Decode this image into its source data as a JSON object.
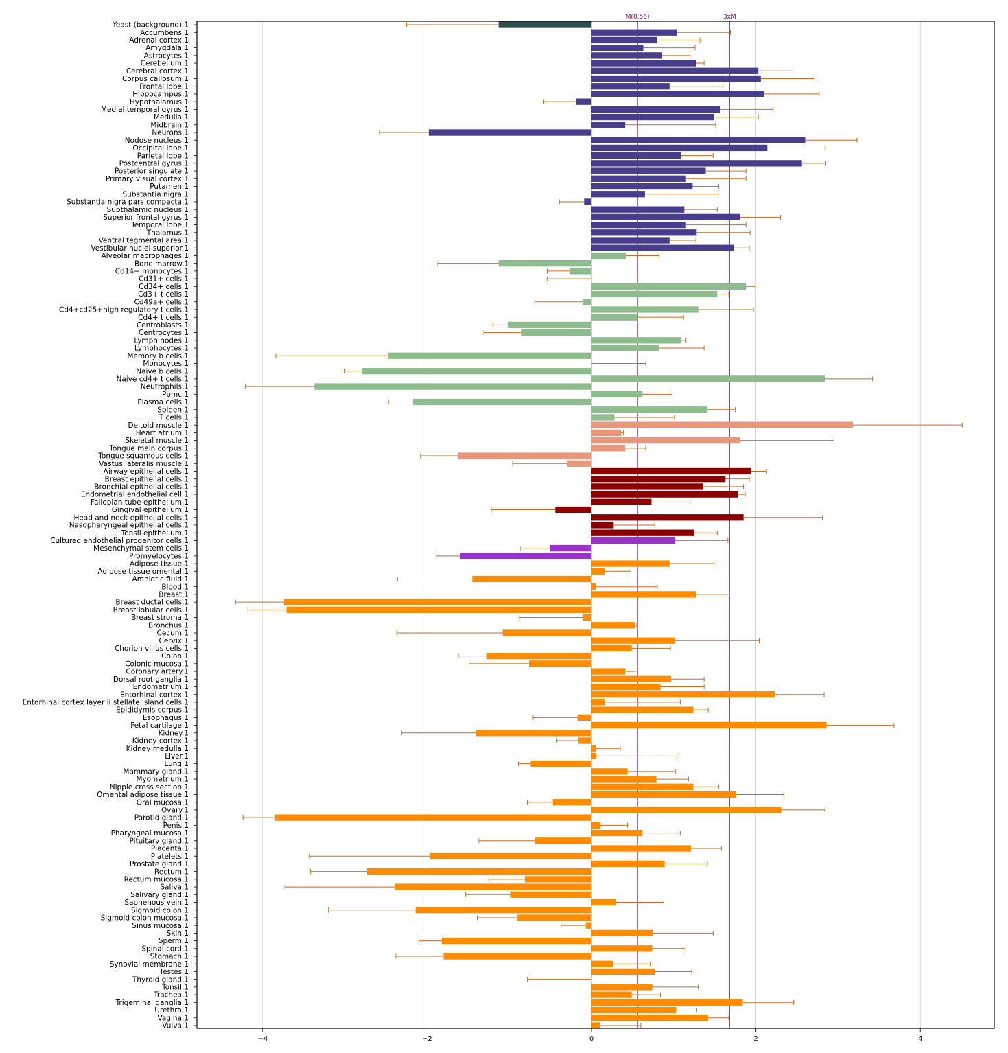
{
  "chart_data": {
    "type": "bar",
    "orientation": "horizontal",
    "xlim": [
      -4.8,
      4.9
    ],
    "xticks": [
      -4,
      -2,
      0,
      2,
      4
    ],
    "xtick_labels": [
      "−4",
      "−2",
      "0",
      "2",
      "4"
    ],
    "grid": "vertical",
    "error_color": "#d2691e",
    "reference_lines": [
      {
        "label": "M(0.56)",
        "x": 0.56,
        "color": "#800080"
      },
      {
        "label": "3xM",
        "x": 1.68,
        "color": "#800080"
      }
    ],
    "groups": [
      {
        "color": "#2f4f4f",
        "start": 0,
        "end": 0
      },
      {
        "color": "#483d8b",
        "start": 1,
        "end": 29
      },
      {
        "color": "#8fbc8f",
        "start": 30,
        "end": 51
      },
      {
        "color": "#e9967a",
        "start": 52,
        "end": 57
      },
      {
        "color": "#8b0000",
        "start": 58,
        "end": 66
      },
      {
        "color": "#9932cc",
        "start": 67,
        "end": 69
      },
      {
        "color": "#ff8c00",
        "start": 70,
        "end": 130
      }
    ],
    "categories": [
      "Yeast (background).1",
      "Accumbens.1",
      "Adrenal cortex.1",
      "Amygdala.1",
      "Astrocytes.1",
      "Cerebellum.1",
      "Cerebral cortex.1",
      "Corpus callosum.1",
      "Frontal lobe.1",
      "Hippocampus.1",
      "Hypothalamus.1",
      "Medial temporal gyrus.1",
      "Medulla.1",
      "Midbrain.1",
      "Neurons.1",
      "Nodose nucleus.1",
      "Occipital lobe.1",
      "Parietal lobe.1",
      "Postcentral gyrus.1",
      "Posterior singulate.1",
      "Primary visual cortex.1",
      "Putamen.1",
      "Substantia nigra.1",
      "Substantia nigra pars compacta.1",
      "Subthalamic nucleus.1",
      "Superior frontal gyrus.1",
      "Temporal lobe.1",
      "Thalamus.1",
      "Ventral tegmental area.1",
      "Vestibular nuclei superior.1",
      "Alveolar macrophages.1",
      "Bone marrow.1",
      "Cd14+ monocytes.1",
      "Cd31+ cells.1",
      "Cd34+ cells.1",
      "Cd3+ t cells.1",
      "Cd49a+ cells.1",
      "Cd4+cd25+high regulatory t cells.1",
      "Cd4+ t cells.1",
      "Centroblasts.1",
      "Centrocytes.1",
      "Lymph nodes.1",
      "Lymphocytes.1",
      "Memory b cells.1",
      "Monocytes.1",
      "Naive b cells.1",
      "Naive cd4+ t cells.1",
      "Neutrophils.1",
      "Pbmc.1",
      "Plasma cells.1",
      "Spleen.1",
      "T cells.1",
      "Deltoid muscle.1",
      "Heart atrium.1",
      "Skeletal muscle.1",
      "Tongue main corpus.1",
      "Tongue squamous cells.1",
      "Vastus lateralis muscle.1",
      "Airway epithelial cells.1",
      "Breast epithelial cells.1",
      "Bronchial epithelial cells.1",
      "Endometrial endothelial cell.1",
      "Fallopian tube epithelium.1",
      "Gingival epithelium.1",
      "Head and neck epithelial cells.1",
      "Nasopharyngeal epithelial cells.1",
      "Tonsil epithelium.1",
      "Cultured endothelial progenitor cells.1",
      "Mesenchymal stem cells.1",
      "Promyelocytes.1",
      "Adipose tissue.1",
      "Adipose tissue omental.1",
      "Amniotic fluid.1",
      "Blood.1",
      "Breast.1",
      "Breast ductal cells.1",
      "Breast lobular cells.1",
      "Breast stroma.1",
      "Bronchus.1",
      "Cecum.1",
      "Cervix.1",
      "Chorion villus cells.1",
      "Colon.1",
      "Colonic mucosa.1",
      "Coronary artery.1",
      "Dorsal root ganglia.1",
      "Endometrium.1",
      "Entorhinal cortex.1",
      "Entorhinal cortex layer ii stellate island cells.1",
      "Epididymis corpus.1",
      "Esophagus.1",
      "Fetal cartilage.1",
      "Kidney.1",
      "Kidney cortex.1",
      "Kidney medulla.1",
      "Liver.1",
      "Lung.1",
      "Mammary gland.1",
      "Myometrium.1",
      "Nipple cross section.1",
      "Omental adipose tissue.1",
      "Oral mucosa.1",
      "Ovary.1",
      "Parotid gland.1",
      "Penis.1",
      "Pharyngeal mucosa.1",
      "Pituitary gland.1",
      "Placenta.1",
      "Platelets.1",
      "Prostate gland.1",
      "Rectum.1",
      "Rectum mucosa.1",
      "Saliva.1",
      "Salivary gland.1",
      "Saphenous vein.1",
      "Sigmoid colon.1",
      "Sigmoid colon mucosa.1",
      "Sinus mucosa.1",
      "Skin.1",
      "Sperm.1",
      "Spinal cord.1",
      "Stomach.1",
      "Synovial membrane.1",
      "Testes.1",
      "Thyroid gland.1",
      "Tonsil.1",
      "Trachea.1",
      "Trigeminal ganglia.1",
      "Urethra.1",
      "Vagina.1",
      "Vulva.1"
    ],
    "values": [
      -1.13,
      1.04,
      0.8,
      0.63,
      0.86,
      1.27,
      2.03,
      2.06,
      0.95,
      2.1,
      -0.19,
      1.57,
      1.49,
      0.41,
      -1.98,
      2.6,
      2.14,
      1.09,
      2.56,
      1.39,
      1.15,
      1.23,
      0.65,
      -0.09,
      1.13,
      1.81,
      1.15,
      1.28,
      0.95,
      1.73,
      0.42,
      -1.13,
      -0.26,
      0.0,
      1.88,
      1.53,
      -0.11,
      1.3,
      0.56,
      -1.02,
      -0.85,
      1.09,
      0.82,
      -2.47,
      0.0,
      -2.79,
      2.84,
      -3.37,
      0.62,
      -2.17,
      1.41,
      0.28,
      3.18,
      0.36,
      1.81,
      0.41,
      -1.62,
      -0.3,
      1.94,
      1.63,
      1.36,
      1.78,
      0.73,
      -0.44,
      1.85,
      0.27,
      1.25,
      1.02,
      -0.51,
      -1.6,
      0.95,
      0.16,
      -1.45,
      0.05,
      1.27,
      -3.74,
      -3.71,
      -0.11,
      0.53,
      -1.08,
      1.02,
      0.49,
      -1.28,
      -0.76,
      0.41,
      0.97,
      0.84,
      2.23,
      0.16,
      1.24,
      -0.17,
      2.86,
      -1.41,
      -0.16,
      0.05,
      0.06,
      -0.74,
      0.44,
      0.79,
      1.24,
      1.76,
      -0.47,
      2.31,
      -3.85,
      0.11,
      0.62,
      -0.69,
      1.21,
      -1.97,
      0.89,
      -2.73,
      -0.81,
      -2.39,
      -0.99,
      0.3,
      -2.14,
      -0.9,
      -0.07,
      0.75,
      -1.82,
      0.74,
      -1.8,
      0.26,
      0.77,
      0.0,
      0.74,
      0.49,
      1.84,
      1.03,
      1.42,
      0.1
    ],
    "error_high": [
      -2.25,
      1.69,
      1.32,
      1.26,
      1.2,
      1.37,
      2.45,
      2.71,
      1.6,
      2.77,
      -0.58,
      2.21,
      2.03,
      1.51,
      -2.58,
      3.23,
      2.84,
      1.48,
      2.85,
      1.88,
      1.88,
      1.55,
      1.54,
      -0.39,
      1.53,
      2.3,
      1.88,
      1.93,
      1.27,
      1.92,
      0.82,
      -1.87,
      -0.54,
      -0.54,
      1.99,
      1.67,
      -0.69,
      1.97,
      1.12,
      -1.2,
      -1.31,
      1.15,
      1.37,
      -3.84,
      0.66,
      -3.0,
      3.42,
      -4.21,
      0.98,
      -2.47,
      1.75,
      1.01,
      4.51,
      0.39,
      2.95,
      0.66,
      -2.08,
      -0.96,
      2.13,
      1.92,
      1.85,
      1.87,
      1.2,
      -1.22,
      2.81,
      0.77,
      1.53,
      1.66,
      -0.86,
      -1.89,
      1.49,
      0.48,
      -2.36,
      0.8,
      1.68,
      -4.33,
      -4.18,
      -0.88,
      0.55,
      -2.37,
      2.04,
      0.96,
      -1.62,
      -1.49,
      0.53,
      1.37,
      1.37,
      2.83,
      1.08,
      1.42,
      -0.71,
      3.68,
      -2.31,
      -0.42,
      0.35,
      1.04,
      -0.89,
      1.02,
      1.18,
      1.55,
      2.34,
      -0.78,
      2.84,
      -4.24,
      0.44,
      1.08,
      -1.37,
      1.58,
      -3.43,
      1.41,
      -3.42,
      -1.25,
      -3.73,
      -1.53,
      0.88,
      -3.2,
      -1.39,
      -0.37,
      1.48,
      -2.1,
      1.14,
      -2.38,
      0.72,
      1.22,
      -0.78,
      1.3,
      0.84,
      2.46,
      1.28,
      1.67,
      0.6
    ]
  },
  "colors": {
    "axis": "#000000",
    "grid": "#cccccc",
    "background": "#ffffff"
  }
}
